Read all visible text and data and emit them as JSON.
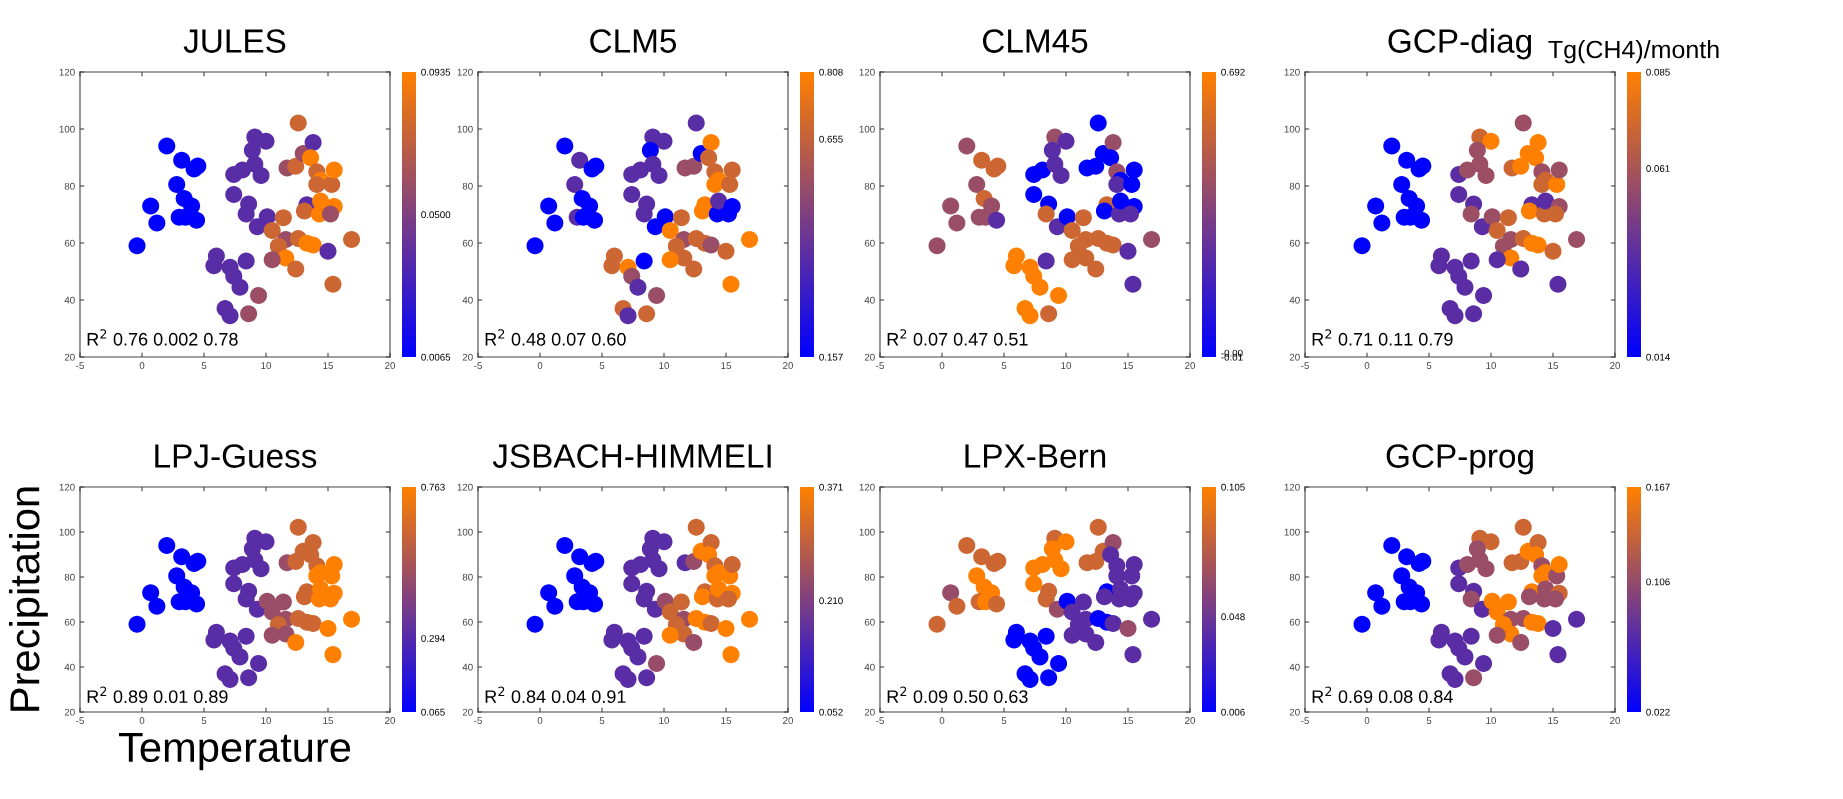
{
  "chart_data": [
    {
      "type": "scatter",
      "title": "JULES",
      "marker": "circle",
      "xlim": [
        -5,
        20
      ],
      "xticks": [
        -5,
        0,
        5,
        10,
        15,
        20
      ],
      "ylim": [
        20,
        120
      ],
      "yticks": [
        20,
        40,
        60,
        80,
        100,
        120
      ],
      "clim": [
        0.0065,
        0.0935
      ],
      "cticks": [
        {
          "value": 0.0065,
          "label": "0.0065"
        },
        {
          "value": 0.05,
          "label": "0.0500"
        },
        {
          "value": 0.0935,
          "label": "0.0935"
        }
      ],
      "annotations": [
        "R$^{2}$ 0.76 0.002 0.78"
      ],
      "x": [
        -0.4,
        0.7,
        1.2,
        2.0,
        3.2,
        2.8,
        3.4,
        3.0,
        3.5,
        4.0,
        4.4,
        4.2,
        4.5,
        5.8,
        6.0,
        7.1,
        7.4,
        7.9,
        6.7,
        7.1,
        8.6,
        9.4,
        8.4,
        7.4,
        8.1,
        7.4,
        8.6,
        8.4,
        9.1,
        10.0,
        8.9,
        9.1,
        9.6,
        9.3,
        10.1,
        10.5,
        11.4,
        11.6,
        11.0,
        11.6,
        10.5,
        12.4,
        12.6,
        13.3,
        13.8,
        12.6,
        11.7,
        12.4,
        13.0,
        13.8,
        13.6,
        14.1,
        14.4,
        14.1,
        15.3,
        15.5,
        13.3,
        13.1,
        14.3,
        14.4,
        15.5,
        15.2,
        15.0,
        15.4,
        16.9
      ],
      "values": [
        59,
        73,
        67,
        94,
        89,
        80.5,
        75.6,
        69,
        69,
        73,
        68,
        86,
        87,
        52,
        55.4,
        51.5,
        48.3,
        44.5,
        37,
        34.5,
        35.2,
        41.6,
        53.7,
        84,
        85.6,
        77,
        73.7,
        70.2,
        97.2,
        95.7,
        92.5,
        87.6,
        83.7,
        65.7,
        69.2,
        64.4,
        68.9,
        61.2,
        58.9,
        54.7,
        54.1,
        50.9,
        61.6,
        59.9,
        59.3,
        102.1,
        86.3,
        86.9,
        91.4,
        95.3,
        89.9,
        85,
        82,
        80.5,
        80.5,
        85.6,
        73.4,
        71.2,
        70.2,
        74.7,
        72.8,
        70.2,
        57.1,
        45.5,
        61.2
      ],
      "cvalues": [
        0.0065,
        0.0065,
        0.0065,
        0.0065,
        0.0065,
        0.0065,
        0.0065,
        0.0065,
        0.0065,
        0.0065,
        0.0065,
        0.0065,
        0.0065,
        0.037,
        0.037,
        0.037,
        0.037,
        0.037,
        0.037,
        0.037,
        0.059,
        0.059,
        0.037,
        0.037,
        0.037,
        0.037,
        0.037,
        0.037,
        0.037,
        0.037,
        0.037,
        0.037,
        0.037,
        0.037,
        0.037,
        0.076,
        0.076,
        0.059,
        0.076,
        0.0935,
        0.059,
        0.076,
        0.076,
        0.0935,
        0.0935,
        0.076,
        0.059,
        0.076,
        0.059,
        0.037,
        0.0935,
        0.076,
        0.0935,
        0.076,
        0.076,
        0.0935,
        0.037,
        0.076,
        0.0935,
        0.0935,
        0.0935,
        0.059,
        0.037,
        0.076,
        0.076
      ]
    },
    {
      "type": "scatter",
      "title": "CLM5",
      "marker": "circle",
      "xlim": [
        -5,
        20
      ],
      "xticks": [
        -5,
        0,
        5,
        10,
        15,
        20
      ],
      "ylim": [
        20,
        120
      ],
      "yticks": [
        20,
        40,
        60,
        80,
        100,
        120
      ],
      "clim": [
        0.157,
        0.808
      ],
      "cticks": [
        {
          "value": 0.157,
          "label": "0.157"
        },
        {
          "value": 0.655,
          "label": "0.655"
        },
        {
          "value": 0.808,
          "label": "0.808"
        }
      ],
      "annotations": [
        "R$^{2}$ 0.48 0.07 0.60"
      ],
      "x": [
        -0.4,
        0.7,
        1.2,
        2.0,
        3.2,
        2.8,
        3.4,
        3.0,
        3.5,
        4.0,
        4.4,
        4.2,
        4.5,
        5.8,
        6.0,
        7.1,
        7.4,
        7.9,
        6.7,
        7.1,
        8.6,
        9.4,
        8.4,
        7.4,
        8.1,
        7.4,
        8.6,
        8.4,
        9.1,
        10.0,
        8.9,
        9.1,
        9.6,
        9.3,
        10.1,
        10.5,
        11.4,
        11.6,
        11.0,
        11.6,
        10.5,
        12.4,
        12.6,
        13.3,
        13.8,
        12.6,
        11.7,
        12.4,
        13.0,
        13.8,
        13.6,
        14.1,
        14.4,
        14.1,
        15.3,
        15.5,
        13.3,
        13.1,
        14.3,
        14.4,
        15.5,
        15.2,
        15.0,
        15.4,
        16.9
      ],
      "values": [
        59,
        73,
        67,
        94,
        89,
        80.5,
        75.6,
        69,
        69,
        73,
        68,
        86,
        87,
        52,
        55.4,
        51.5,
        48.3,
        44.5,
        37,
        34.5,
        35.2,
        41.6,
        53.7,
        84,
        85.6,
        77,
        73.7,
        70.2,
        97.2,
        95.7,
        92.5,
        87.6,
        83.7,
        65.7,
        69.2,
        64.4,
        68.9,
        61.2,
        58.9,
        54.7,
        54.1,
        50.9,
        61.6,
        59.9,
        59.3,
        102.1,
        86.3,
        86.9,
        91.4,
        95.3,
        89.9,
        85,
        82,
        80.5,
        80.5,
        85.6,
        73.4,
        71.2,
        70.2,
        74.7,
        72.8,
        70.2,
        57.1,
        45.5,
        61.2
      ],
      "cvalues": [
        0.157,
        0.157,
        0.157,
        0.157,
        0.385,
        0.385,
        0.157,
        0.385,
        0.157,
        0.157,
        0.157,
        0.157,
        0.157,
        0.678,
        0.678,
        0.808,
        0.548,
        0.385,
        0.678,
        0.385,
        0.678,
        0.548,
        0.157,
        0.385,
        0.385,
        0.385,
        0.385,
        0.385,
        0.385,
        0.385,
        0.157,
        0.385,
        0.385,
        0.157,
        0.157,
        0.808,
        0.678,
        0.548,
        0.678,
        0.678,
        0.808,
        0.678,
        0.678,
        0.678,
        0.548,
        0.385,
        0.548,
        0.548,
        0.157,
        0.808,
        0.678,
        0.678,
        0.808,
        0.808,
        0.678,
        0.678,
        0.808,
        0.808,
        0.157,
        0.385,
        0.157,
        0.157,
        0.678,
        0.808,
        0.808
      ]
    },
    {
      "type": "scatter",
      "title": "CLM45",
      "marker": "circle",
      "xlim": [
        -5,
        20
      ],
      "xticks": [
        -5,
        0,
        5,
        10,
        15,
        20
      ],
      "ylim": [
        20,
        120
      ],
      "yticks": [
        20,
        40,
        60,
        80,
        100,
        120
      ],
      "clim": [
        -0.01,
        0.692
      ],
      "cticks": [
        {
          "value": -0.01,
          "label": "-0.01"
        },
        {
          "value": 0,
          "label": "-0.00"
        },
        {
          "value": 0.692,
          "label": "0.692"
        }
      ],
      "annotations": [
        "R$^{2}$ 0.07 0.47 0.51"
      ],
      "x": [
        -0.4,
        0.7,
        1.2,
        2.0,
        3.2,
        2.8,
        3.4,
        3.0,
        3.5,
        4.0,
        4.4,
        4.2,
        4.5,
        5.8,
        6.0,
        7.1,
        7.4,
        7.9,
        6.7,
        7.1,
        8.6,
        9.4,
        8.4,
        7.4,
        8.1,
        7.4,
        8.6,
        8.4,
        9.1,
        10.0,
        8.9,
        9.1,
        9.6,
        9.3,
        10.1,
        10.5,
        11.4,
        11.6,
        11.0,
        11.6,
        10.5,
        12.4,
        12.6,
        13.3,
        13.8,
        12.6,
        11.7,
        12.4,
        13.0,
        13.8,
        13.6,
        14.1,
        14.4,
        14.1,
        15.3,
        15.5,
        13.3,
        13.1,
        14.3,
        14.4,
        15.5,
        15.2,
        15.0,
        15.4,
        16.9
      ],
      "values": [
        59,
        73,
        67,
        94,
        89,
        80.5,
        75.6,
        69,
        69,
        73,
        68,
        86,
        87,
        52,
        55.4,
        51.5,
        48.3,
        44.5,
        37,
        34.5,
        35.2,
        41.6,
        53.7,
        84,
        85.6,
        77,
        73.7,
        70.2,
        97.2,
        95.7,
        92.5,
        87.6,
        83.7,
        65.7,
        69.2,
        64.4,
        68.9,
        61.2,
        58.9,
        54.7,
        54.1,
        50.9,
        61.6,
        59.9,
        59.3,
        102.1,
        86.3,
        86.9,
        91.4,
        95.3,
        89.9,
        85,
        82,
        80.5,
        80.5,
        85.6,
        73.4,
        71.2,
        70.2,
        74.7,
        72.8,
        70.2,
        57.1,
        45.5,
        61.2
      ],
      "cvalues": [
        0.411,
        0.411,
        0.411,
        0.411,
        0.552,
        0.411,
        0.552,
        0.411,
        0.411,
        0.411,
        0.236,
        0.552,
        0.552,
        0.692,
        0.692,
        0.692,
        0.692,
        0.692,
        0.692,
        0.692,
        0.552,
        0.692,
        0.236,
        -0.01,
        -0.01,
        -0.01,
        -0.01,
        0.552,
        0.411,
        0.236,
        0.236,
        0.236,
        0.236,
        0.236,
        -0.01,
        0.552,
        0.552,
        0.552,
        0.552,
        0.552,
        0.552,
        0.552,
        0.552,
        0.552,
        0.552,
        -0.01,
        -0.01,
        -0.01,
        -0.01,
        0.411,
        -0.01,
        0.411,
        -0.01,
        0.236,
        -0.01,
        -0.01,
        0.552,
        -0.01,
        0.236,
        -0.01,
        -0.01,
        0.236,
        0.236,
        0.236,
        0.411
      ]
    },
    {
      "type": "scatter",
      "title": "GCP-diag",
      "clabel": "Tg(CH4)/month",
      "marker": "circle",
      "xlim": [
        -5,
        20
      ],
      "xticks": [
        -5,
        0,
        5,
        10,
        15,
        20
      ],
      "ylim": [
        20,
        120
      ],
      "yticks": [
        20,
        40,
        60,
        80,
        100,
        120
      ],
      "clim": [
        0.014,
        0.085
      ],
      "cticks": [
        {
          "value": 0.014,
          "label": "0.014"
        },
        {
          "value": 0.061,
          "label": "0.061"
        },
        {
          "value": 0.085,
          "label": "0.085"
        }
      ],
      "annotations": [
        "R$^{2}$ 0.71 0.11 0.79"
      ],
      "x": [
        -0.4,
        0.7,
        1.2,
        2.0,
        3.2,
        2.8,
        3.4,
        3.0,
        3.5,
        4.0,
        4.4,
        4.2,
        4.5,
        5.8,
        6.0,
        7.1,
        7.4,
        7.9,
        6.7,
        7.1,
        8.6,
        9.4,
        8.4,
        7.4,
        8.1,
        7.4,
        8.6,
        8.4,
        9.1,
        10.0,
        8.9,
        9.1,
        9.6,
        9.3,
        10.1,
        10.5,
        11.4,
        11.6,
        11.0,
        11.6,
        10.5,
        12.4,
        12.6,
        13.3,
        13.8,
        12.6,
        11.7,
        12.4,
        13.0,
        13.8,
        13.6,
        14.1,
        14.4,
        14.1,
        15.3,
        15.5,
        13.3,
        13.1,
        14.3,
        14.4,
        15.5,
        15.2,
        15.0,
        15.4,
        16.9
      ],
      "values": [
        59,
        73,
        67,
        94,
        89,
        80.5,
        75.6,
        69,
        69,
        73,
        68,
        86,
        87,
        52,
        55.4,
        51.5,
        48.3,
        44.5,
        37,
        34.5,
        35.2,
        41.6,
        53.7,
        84,
        85.6,
        77,
        73.7,
        70.2,
        97.2,
        95.7,
        92.5,
        87.6,
        83.7,
        65.7,
        69.2,
        64.4,
        68.9,
        61.2,
        58.9,
        54.7,
        54.1,
        50.9,
        61.6,
        59.9,
        59.3,
        102.1,
        86.3,
        86.9,
        91.4,
        95.3,
        89.9,
        85,
        82,
        80.5,
        80.5,
        85.6,
        73.4,
        71.2,
        70.2,
        74.7,
        72.8,
        70.2,
        57.1,
        45.5,
        61.2
      ],
      "cvalues": [
        0.014,
        0.014,
        0.014,
        0.014,
        0.014,
        0.014,
        0.014,
        0.014,
        0.014,
        0.014,
        0.014,
        0.014,
        0.014,
        0.039,
        0.039,
        0.039,
        0.039,
        0.039,
        0.039,
        0.039,
        0.039,
        0.039,
        0.039,
        0.039,
        0.057,
        0.039,
        0.039,
        0.057,
        0.071,
        0.085,
        0.057,
        0.057,
        0.057,
        0.039,
        0.057,
        0.071,
        0.071,
        0.057,
        0.057,
        0.085,
        0.039,
        0.039,
        0.071,
        0.085,
        0.085,
        0.057,
        0.071,
        0.085,
        0.085,
        0.085,
        0.085,
        0.057,
        0.071,
        0.071,
        0.085,
        0.057,
        0.039,
        0.085,
        0.071,
        0.039,
        0.057,
        0.071,
        0.071,
        0.039,
        0.057
      ]
    },
    {
      "type": "scatter",
      "title": "LPJ-Guess",
      "xlabel": "Temperature",
      "ylabel": "Precipitation",
      "marker": "circle",
      "xlim": [
        -5,
        20
      ],
      "xticks": [
        -5,
        0,
        5,
        10,
        15,
        20
      ],
      "ylim": [
        20,
        120
      ],
      "yticks": [
        20,
        40,
        60,
        80,
        100,
        120
      ],
      "clim": [
        0.065,
        0.763
      ],
      "cticks": [
        {
          "value": 0.065,
          "label": "0.065"
        },
        {
          "value": 0.294,
          "label": "0.294"
        },
        {
          "value": 0.763,
          "label": "0.763"
        }
      ],
      "annotations": [
        "R$^{2}$ 0.89 0.01 0.89"
      ],
      "x": [
        -0.4,
        0.7,
        1.2,
        2.0,
        3.2,
        2.8,
        3.4,
        3.0,
        3.5,
        4.0,
        4.4,
        4.2,
        4.5,
        5.8,
        6.0,
        7.1,
        7.4,
        7.9,
        6.7,
        7.1,
        8.6,
        9.4,
        8.4,
        7.4,
        8.1,
        7.4,
        8.6,
        8.4,
        9.1,
        10.0,
        8.9,
        9.1,
        9.6,
        9.3,
        10.1,
        10.5,
        11.4,
        11.6,
        11.0,
        11.6,
        10.5,
        12.4,
        12.6,
        13.3,
        13.8,
        12.6,
        11.7,
        12.4,
        13.0,
        13.8,
        13.6,
        14.1,
        14.4,
        14.1,
        15.3,
        15.5,
        13.3,
        13.1,
        14.3,
        14.4,
        15.5,
        15.2,
        15.0,
        15.4,
        16.9
      ],
      "values": [
        59,
        73,
        67,
        94,
        89,
        80.5,
        75.6,
        69,
        69,
        73,
        68,
        86,
        87,
        52,
        55.4,
        51.5,
        48.3,
        44.5,
        37,
        34.5,
        35.2,
        41.6,
        53.7,
        84,
        85.6,
        77,
        73.7,
        70.2,
        97.2,
        95.7,
        92.5,
        87.6,
        83.7,
        65.7,
        69.2,
        64.4,
        68.9,
        61.2,
        58.9,
        54.7,
        54.1,
        50.9,
        61.6,
        59.9,
        59.3,
        102.1,
        86.3,
        86.9,
        91.4,
        95.3,
        89.9,
        85,
        82,
        80.5,
        80.5,
        85.6,
        73.4,
        71.2,
        70.2,
        74.7,
        72.8,
        70.2,
        57.1,
        45.5,
        61.2
      ],
      "cvalues": [
        0.065,
        0.065,
        0.065,
        0.065,
        0.065,
        0.065,
        0.065,
        0.065,
        0.065,
        0.065,
        0.065,
        0.065,
        0.065,
        0.309,
        0.309,
        0.309,
        0.309,
        0.309,
        0.309,
        0.309,
        0.309,
        0.309,
        0.309,
        0.309,
        0.309,
        0.309,
        0.309,
        0.309,
        0.309,
        0.309,
        0.309,
        0.309,
        0.309,
        0.309,
        0.484,
        0.484,
        0.484,
        0.484,
        0.623,
        0.484,
        0.484,
        0.763,
        0.623,
        0.623,
        0.623,
        0.623,
        0.484,
        0.623,
        0.623,
        0.623,
        0.623,
        0.623,
        0.763,
        0.763,
        0.763,
        0.763,
        0.623,
        0.623,
        0.763,
        0.763,
        0.763,
        0.763,
        0.763,
        0.763,
        0.763
      ]
    },
    {
      "type": "scatter",
      "title": "JSBACH-HIMMELI",
      "marker": "circle",
      "xlim": [
        -5,
        20
      ],
      "xticks": [
        -5,
        0,
        5,
        10,
        15,
        20
      ],
      "ylim": [
        20,
        120
      ],
      "yticks": [
        20,
        40,
        60,
        80,
        100,
        120
      ],
      "clim": [
        0.052,
        0.371
      ],
      "cticks": [
        {
          "value": 0.052,
          "label": "0.052"
        },
        {
          "value": 0.21,
          "label": "0.210"
        },
        {
          "value": 0.371,
          "label": "0.371"
        }
      ],
      "annotations": [
        "R$^{2}$ 0.84 0.04 0.91"
      ],
      "x": [
        -0.4,
        0.7,
        1.2,
        2.0,
        3.2,
        2.8,
        3.4,
        3.0,
        3.5,
        4.0,
        4.4,
        4.2,
        4.5,
        5.8,
        6.0,
        7.1,
        7.4,
        7.9,
        6.7,
        7.1,
        8.6,
        9.4,
        8.4,
        7.4,
        8.1,
        7.4,
        8.6,
        8.4,
        9.1,
        10.0,
        8.9,
        9.1,
        9.6,
        9.3,
        10.1,
        10.5,
        11.4,
        11.6,
        11.0,
        11.6,
        10.5,
        12.4,
        12.6,
        13.3,
        13.8,
        12.6,
        11.7,
        12.4,
        13.0,
        13.8,
        13.6,
        14.1,
        14.4,
        14.1,
        15.3,
        15.5,
        13.3,
        13.1,
        14.3,
        14.4,
        15.5,
        15.2,
        15.0,
        15.4,
        16.9
      ],
      "values": [
        59,
        73,
        67,
        94,
        89,
        80.5,
        75.6,
        69,
        69,
        73,
        68,
        86,
        87,
        52,
        55.4,
        51.5,
        48.3,
        44.5,
        37,
        34.5,
        35.2,
        41.6,
        53.7,
        84,
        85.6,
        77,
        73.7,
        70.2,
        97.2,
        95.7,
        92.5,
        87.6,
        83.7,
        65.7,
        69.2,
        64.4,
        68.9,
        61.2,
        58.9,
        54.7,
        54.1,
        50.9,
        61.6,
        59.9,
        59.3,
        102.1,
        86.3,
        86.9,
        91.4,
        95.3,
        89.9,
        85,
        82,
        80.5,
        80.5,
        85.6,
        73.4,
        71.2,
        70.2,
        74.7,
        72.8,
        70.2,
        57.1,
        45.5,
        61.2
      ],
      "cvalues": [
        0.052,
        0.052,
        0.052,
        0.052,
        0.052,
        0.052,
        0.052,
        0.052,
        0.052,
        0.052,
        0.052,
        0.052,
        0.052,
        0.163,
        0.163,
        0.163,
        0.163,
        0.163,
        0.163,
        0.163,
        0.163,
        0.242,
        0.163,
        0.163,
        0.163,
        0.163,
        0.163,
        0.163,
        0.163,
        0.163,
        0.163,
        0.163,
        0.163,
        0.163,
        0.242,
        0.307,
        0.307,
        0.242,
        0.307,
        0.307,
        0.371,
        0.242,
        0.371,
        0.371,
        0.307,
        0.307,
        0.163,
        0.242,
        0.371,
        0.307,
        0.371,
        0.307,
        0.371,
        0.371,
        0.371,
        0.307,
        0.307,
        0.371,
        0.307,
        0.371,
        0.371,
        0.307,
        0.371,
        0.371,
        0.371
      ]
    },
    {
      "type": "scatter",
      "title": "LPX-Bern",
      "marker": "circle",
      "xlim": [
        -5,
        20
      ],
      "xticks": [
        -5,
        0,
        5,
        10,
        15,
        20
      ],
      "ylim": [
        20,
        120
      ],
      "yticks": [
        20,
        40,
        60,
        80,
        100,
        120
      ],
      "clim": [
        0.006,
        0.105
      ],
      "cticks": [
        {
          "value": 0.006,
          "label": "0.006"
        },
        {
          "value": 0.048,
          "label": "0.048"
        },
        {
          "value": 0.105,
          "label": "0.105"
        }
      ],
      "annotations": [
        "R$^{2}$ 0.09 0.50 0.63"
      ],
      "x": [
        -0.4,
        0.7,
        1.2,
        2.0,
        3.2,
        2.8,
        3.4,
        3.0,
        3.5,
        4.0,
        4.4,
        4.2,
        4.5,
        5.8,
        6.0,
        7.1,
        7.4,
        7.9,
        6.7,
        7.1,
        8.6,
        9.4,
        8.4,
        7.4,
        8.1,
        7.4,
        8.6,
        8.4,
        9.1,
        10.0,
        8.9,
        9.1,
        9.6,
        9.3,
        10.1,
        10.5,
        11.4,
        11.6,
        11.0,
        11.6,
        10.5,
        12.4,
        12.6,
        13.3,
        13.8,
        12.6,
        11.7,
        12.4,
        13.0,
        13.8,
        13.6,
        14.1,
        14.1,
        15.3,
        15.5,
        13.3,
        13.1,
        14.3,
        14.4,
        15.5,
        15.2,
        15.0,
        15.4,
        16.9
      ],
      "values": [
        59,
        73,
        67,
        94,
        89,
        80.5,
        75.6,
        69,
        69,
        73,
        68,
        86,
        87,
        52,
        55.4,
        51.5,
        48.3,
        44.5,
        37,
        34.5,
        35.2,
        41.6,
        53.7,
        84,
        85.6,
        77,
        73.7,
        70.2,
        97.2,
        95.7,
        92.5,
        87.6,
        83.7,
        65.7,
        69.2,
        64.4,
        68.9,
        61.2,
        58.9,
        54.7,
        54.1,
        50.9,
        61.6,
        59.9,
        59.3,
        102.1,
        86.3,
        86.9,
        91.4,
        95.3,
        89.9,
        85,
        80.5,
        80.5,
        85.6,
        73.4,
        71.2,
        70.2,
        74.7,
        72.8,
        70.2,
        57.1,
        45.5,
        61.2
      ],
      "cvalues": [
        0.085,
        0.065,
        0.085,
        0.085,
        0.085,
        0.105,
        0.105,
        0.085,
        0.105,
        0.105,
        0.085,
        0.085,
        0.085,
        0.006,
        0.006,
        0.006,
        0.006,
        0.006,
        0.006,
        0.006,
        0.006,
        0.006,
        0.006,
        0.105,
        0.105,
        0.105,
        0.085,
        0.085,
        0.085,
        0.105,
        0.105,
        0.105,
        0.105,
        0.065,
        0.006,
        0.041,
        0.041,
        0.041,
        0.041,
        0.041,
        0.041,
        0.041,
        0.006,
        0.006,
        0.041,
        0.085,
        0.085,
        0.085,
        0.085,
        0.065,
        0.041,
        0.041,
        0.041,
        0.041,
        0.041,
        0.006,
        0.041,
        0.041,
        0.041,
        0.041,
        0.041,
        0.065,
        0.041,
        0.041
      ]
    },
    {
      "type": "scatter",
      "title": "GCP-prog",
      "marker": "circle",
      "xlim": [
        -5,
        20
      ],
      "xticks": [
        -5,
        0,
        5,
        10,
        15,
        20
      ],
      "ylim": [
        20,
        120
      ],
      "yticks": [
        20,
        40,
        60,
        80,
        100,
        120
      ],
      "clim": [
        0.022,
        0.167
      ],
      "cticks": [
        {
          "value": 0.022,
          "label": "0.022"
        },
        {
          "value": 0.106,
          "label": "0.106"
        },
        {
          "value": 0.167,
          "label": "0.167"
        }
      ],
      "annotations": [
        "R$^{2}$ 0.69 0.08 0.84"
      ],
      "x": [
        -0.4,
        0.7,
        1.2,
        2.0,
        3.2,
        2.8,
        3.4,
        3.0,
        3.5,
        4.0,
        4.4,
        4.2,
        4.5,
        5.8,
        6.0,
        7.1,
        7.4,
        7.9,
        6.7,
        7.1,
        8.6,
        9.4,
        8.4,
        7.4,
        8.1,
        7.4,
        8.6,
        8.4,
        9.1,
        10.0,
        8.9,
        9.1,
        9.6,
        9.3,
        10.1,
        10.5,
        11.4,
        11.6,
        11.0,
        11.6,
        10.5,
        12.4,
        12.6,
        13.3,
        13.8,
        12.6,
        11.7,
        12.4,
        13.0,
        13.8,
        13.6,
        14.1,
        14.4,
        14.1,
        15.3,
        15.5,
        13.3,
        13.1,
        14.3,
        14.4,
        15.5,
        15.2,
        15.0,
        15.4,
        16.9
      ],
      "values": [
        59,
        73,
        67,
        94,
        89,
        80.5,
        75.6,
        69,
        69,
        73,
        68,
        86,
        87,
        52,
        55.4,
        51.5,
        48.3,
        44.5,
        37,
        34.5,
        35.2,
        41.6,
        53.7,
        84,
        85.6,
        77,
        73.7,
        70.2,
        97.2,
        95.7,
        92.5,
        87.6,
        83.7,
        65.7,
        69.2,
        64.4,
        68.9,
        61.2,
        58.9,
        54.7,
        54.1,
        50.9,
        61.6,
        59.9,
        59.3,
        102.1,
        86.3,
        86.9,
        91.4,
        95.3,
        89.9,
        85,
        82,
        80.5,
        80.5,
        85.6,
        73.4,
        71.2,
        70.2,
        74.7,
        72.8,
        70.2,
        57.1,
        45.5,
        61.2
      ],
      "cvalues": [
        0.022,
        0.022,
        0.022,
        0.022,
        0.022,
        0.022,
        0.022,
        0.022,
        0.022,
        0.022,
        0.022,
        0.022,
        0.022,
        0.073,
        0.073,
        0.073,
        0.073,
        0.073,
        0.073,
        0.073,
        0.109,
        0.073,
        0.073,
        0.073,
        0.109,
        0.073,
        0.073,
        0.109,
        0.138,
        0.138,
        0.109,
        0.109,
        0.109,
        0.073,
        0.167,
        0.167,
        0.167,
        0.109,
        0.167,
        0.167,
        0.109,
        0.109,
        0.109,
        0.167,
        0.167,
        0.138,
        0.138,
        0.138,
        0.167,
        0.138,
        0.167,
        0.109,
        0.167,
        0.167,
        0.109,
        0.167,
        0.167,
        0.109,
        0.109,
        0.109,
        0.138,
        0.109,
        0.073,
        0.073,
        0.073
      ]
    }
  ]
}
